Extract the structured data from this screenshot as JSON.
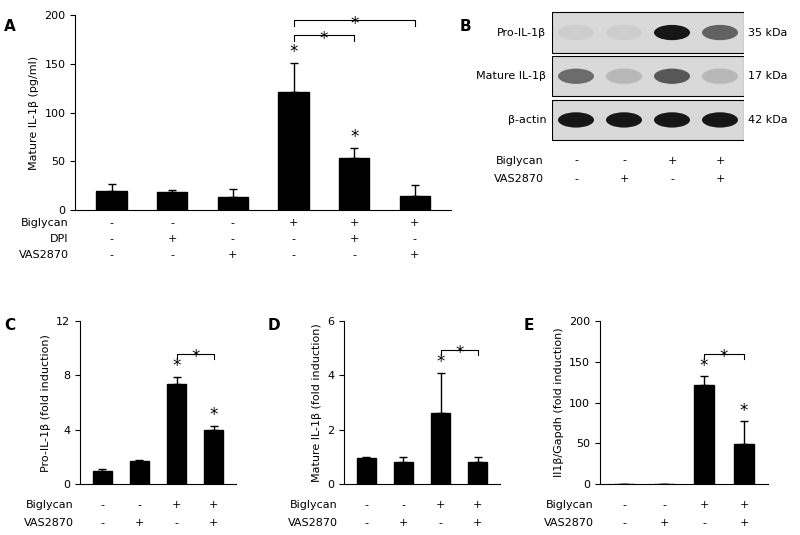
{
  "chart_data": [
    {
      "panel": "A",
      "type": "bar",
      "y_label": "Mature IL-1β (pg/ml)",
      "categories": [
        null,
        null,
        null,
        null,
        null,
        null
      ],
      "values": [
        20,
        19,
        14,
        121,
        54,
        15
      ],
      "errors": [
        7,
        2,
        8,
        30,
        10,
        11
      ],
      "color": "#000000",
      "ylim": [
        0,
        200
      ],
      "yticks": [
        0,
        50,
        100,
        150,
        200
      ],
      "tick_labels": "y",
      "stars": [
        null,
        null,
        null,
        "*",
        "*",
        null
      ],
      "brackets": [
        {
          "from": 3,
          "to": 4,
          "text": "*"
        },
        {
          "from": 3,
          "to": 5,
          "text": "*"
        }
      ],
      "conditions": [
        {
          "name": "Biglycan",
          "values": [
            "-",
            "-",
            "-",
            "+",
            "+",
            "+"
          ]
        },
        {
          "name": "DPI",
          "values": [
            "-",
            "+",
            "-",
            "-",
            "+",
            "-"
          ]
        },
        {
          "name": "VAS2870",
          "values": [
            "-",
            "-",
            "+",
            "-",
            "-",
            "+"
          ]
        }
      ]
    },
    {
      "panel": "C",
      "type": "bar",
      "y_label": "Pro-IL-1β (fold induction)",
      "categories": [
        null,
        null,
        null,
        null
      ],
      "values": [
        1.0,
        1.7,
        7.4,
        4.0
      ],
      "errors": [
        0.1,
        0.1,
        0.5,
        0.3
      ],
      "color": "#000000",
      "ylim": [
        0,
        12
      ],
      "yticks": [
        0,
        4,
        8,
        12
      ],
      "tick_labels": "y",
      "stars": [
        null,
        null,
        "*",
        "*"
      ],
      "brackets": [
        {
          "from": 2,
          "to": 3,
          "text": "*"
        }
      ],
      "conditions": [
        {
          "name": "Biglycan",
          "values": [
            "-",
            "-",
            "+",
            "+"
          ]
        },
        {
          "name": "VAS2870",
          "values": [
            "-",
            "+",
            "-",
            "+"
          ]
        }
      ]
    },
    {
      "panel": "D",
      "type": "bar",
      "y_label": "Mature IL-1β (fold induction)",
      "categories": [
        null,
        null,
        null,
        null
      ],
      "values": [
        0.97,
        0.8,
        2.6,
        0.8
      ],
      "errors": [
        0.03,
        0.2,
        1.5,
        0.2
      ],
      "color": "#000000",
      "ylim": [
        0,
        6
      ],
      "yticks": [
        0,
        2,
        4,
        6
      ],
      "tick_labels": "y",
      "stars": [
        null,
        null,
        "*",
        null
      ],
      "brackets": [
        {
          "from": 2,
          "to": 3,
          "text": "*"
        }
      ],
      "conditions": [
        {
          "name": "Biglycan",
          "values": [
            "-",
            "-",
            "+",
            "+"
          ]
        },
        {
          "name": "VAS2870",
          "values": [
            "-",
            "+",
            "-",
            "+"
          ]
        }
      ]
    },
    {
      "panel": "E",
      "type": "bar",
      "y_label": "Il1β/Gapdh (fold induction)",
      "categories": [
        null,
        null,
        null,
        null
      ],
      "values": [
        0.5,
        0.5,
        121,
        49
      ],
      "errors": [
        0,
        0,
        11,
        28
      ],
      "color": "#000000",
      "ylim": [
        0,
        200
      ],
      "yticks": [
        0,
        50,
        100,
        150,
        200
      ],
      "tick_labels": "y",
      "stars": [
        null,
        null,
        "*",
        "*"
      ],
      "brackets": [
        {
          "from": 2,
          "to": 3,
          "text": "*"
        }
      ],
      "conditions": [
        {
          "name": "Biglycan",
          "values": [
            "-",
            "-",
            "+",
            "+"
          ]
        },
        {
          "name": "VAS2870",
          "values": [
            "-",
            "+",
            "-",
            "+"
          ]
        }
      ]
    }
  ],
  "blot": {
    "panel": "B",
    "rows": [
      {
        "name": "Pro-IL-1β",
        "size": "35 kDa",
        "band_intensity": [
          0.05,
          0.05,
          0.9,
          0.55
        ]
      },
      {
        "name": "Mature IL-1β",
        "size": "17 kDa",
        "band_intensity": [
          0.5,
          0.15,
          0.6,
          0.15
        ]
      },
      {
        "name": "β-actin",
        "size": "42 kDa",
        "band_intensity": [
          0.9,
          0.9,
          0.9,
          0.9
        ]
      }
    ],
    "conditions": [
      {
        "name": "Biglycan",
        "values": [
          "-",
          "-",
          "+",
          "+"
        ]
      },
      {
        "name": "VAS2870",
        "values": [
          "-",
          "+",
          "-",
          "+"
        ]
      }
    ]
  }
}
